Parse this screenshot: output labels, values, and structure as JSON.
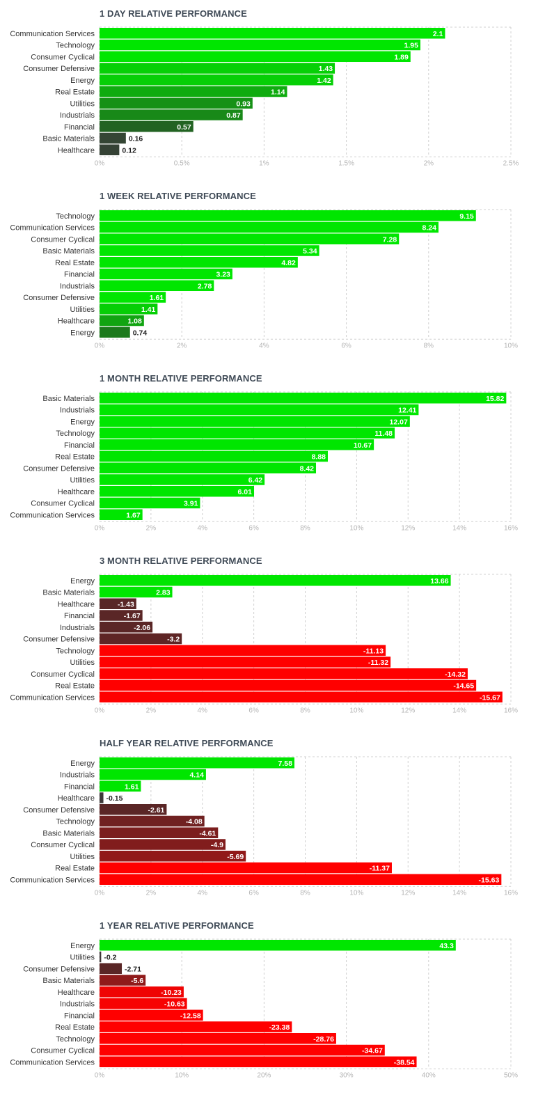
{
  "colors": {
    "max_green": "#00e600",
    "dark_green": "#245a24",
    "neutral": "#3b3b3b",
    "dark_red": "#5a2626",
    "max_red": "#ff0000",
    "grid": "#d0d0d0"
  },
  "chart_data": [
    {
      "type": "bar",
      "orientation": "horizontal",
      "title": "1 DAY RELATIVE PERFORMANCE",
      "categories": [
        "Communication Services",
        "Technology",
        "Consumer Cyclical",
        "Consumer Defensive",
        "Energy",
        "Real Estate",
        "Utilities",
        "Industrials",
        "Financial",
        "Basic Materials",
        "Healthcare"
      ],
      "values": [
        2.1,
        1.95,
        1.89,
        1.43,
        1.42,
        1.14,
        0.93,
        0.87,
        0.57,
        0.16,
        0.12
      ],
      "value_labels": [
        "2.1",
        "1.95",
        "1.89",
        "1.43",
        "1.42",
        "1.14",
        "0.93",
        "0.87",
        "0.57",
        "0.16",
        "0.12"
      ],
      "ticks": [
        "0%",
        "0.5%",
        "1%",
        "1.5%",
        "2%",
        "2.5%"
      ],
      "xlim": [
        0,
        2.5
      ]
    },
    {
      "type": "bar",
      "orientation": "horizontal",
      "title": "1 WEEK RELATIVE PERFORMANCE",
      "categories": [
        "Technology",
        "Communication Services",
        "Consumer Cyclical",
        "Basic Materials",
        "Real Estate",
        "Financial",
        "Industrials",
        "Consumer Defensive",
        "Utilities",
        "Healthcare",
        "Energy"
      ],
      "values": [
        9.15,
        8.24,
        7.28,
        5.34,
        4.82,
        3.23,
        2.78,
        1.61,
        1.41,
        1.08,
        0.74
      ],
      "value_labels": [
        "9.15",
        "8.24",
        "7.28",
        "5.34",
        "4.82",
        "3.23",
        "2.78",
        "1.61",
        "1.41",
        "1.08",
        "0.74"
      ],
      "ticks": [
        "0%",
        "2%",
        "4%",
        "6%",
        "8%",
        "10%"
      ],
      "xlim": [
        0,
        10
      ]
    },
    {
      "type": "bar",
      "orientation": "horizontal",
      "title": "1 MONTH RELATIVE PERFORMANCE",
      "categories": [
        "Basic Materials",
        "Industrials",
        "Energy",
        "Technology",
        "Financial",
        "Real Estate",
        "Consumer Defensive",
        "Utilities",
        "Healthcare",
        "Consumer Cyclical",
        "Communication Services"
      ],
      "values": [
        15.82,
        12.41,
        12.07,
        11.48,
        10.67,
        8.88,
        8.42,
        6.42,
        6.01,
        3.91,
        1.67
      ],
      "value_labels": [
        "15.82",
        "12.41",
        "12.07",
        "11.48",
        "10.67",
        "8.88",
        "8.42",
        "6.42",
        "6.01",
        "3.91",
        "1.67"
      ],
      "ticks": [
        "0%",
        "2%",
        "4%",
        "6%",
        "8%",
        "10%",
        "12%",
        "14%",
        "16%"
      ],
      "xlim": [
        0,
        16
      ]
    },
    {
      "type": "bar",
      "orientation": "horizontal",
      "title": "3 MONTH RELATIVE PERFORMANCE",
      "categories": [
        "Energy",
        "Basic Materials",
        "Healthcare",
        "Financial",
        "Industrials",
        "Consumer Defensive",
        "Technology",
        "Utilities",
        "Consumer Cyclical",
        "Real Estate",
        "Communication Services"
      ],
      "values": [
        13.66,
        2.83,
        -1.43,
        -1.67,
        -2.06,
        -3.2,
        -11.13,
        -11.32,
        -14.32,
        -14.65,
        -15.67
      ],
      "value_labels": [
        "13.66",
        "2.83",
        "-1.43",
        "-1.67",
        "-2.06",
        "-3.2",
        "-11.13",
        "-11.32",
        "-14.32",
        "-14.65",
        "-15.67"
      ],
      "ticks": [
        "0%",
        "2%",
        "4%",
        "6%",
        "8%",
        "10%",
        "12%",
        "14%",
        "16%"
      ],
      "xlim": [
        0,
        16
      ],
      "bar_length": "absolute value"
    },
    {
      "type": "bar",
      "orientation": "horizontal",
      "title": "HALF YEAR RELATIVE PERFORMANCE",
      "categories": [
        "Energy",
        "Industrials",
        "Financial",
        "Healthcare",
        "Consumer Defensive",
        "Technology",
        "Basic Materials",
        "Consumer Cyclical",
        "Utilities",
        "Real Estate",
        "Communication Services"
      ],
      "values": [
        7.58,
        4.14,
        1.61,
        -0.15,
        -2.61,
        -4.08,
        -4.61,
        -4.9,
        -5.69,
        -11.37,
        -15.63
      ],
      "value_labels": [
        "7.58",
        "4.14",
        "1.61",
        "-0.15",
        "-2.61",
        "-4.08",
        "-4.61",
        "-4.9",
        "-5.69",
        "-11.37",
        "-15.63"
      ],
      "ticks": [
        "0%",
        "2%",
        "4%",
        "6%",
        "8%",
        "10%",
        "12%",
        "14%",
        "16%"
      ],
      "xlim": [
        0,
        16
      ],
      "bar_length": "absolute value"
    },
    {
      "type": "bar",
      "orientation": "horizontal",
      "title": "1 YEAR RELATIVE PERFORMANCE",
      "categories": [
        "Energy",
        "Utilities",
        "Consumer Defensive",
        "Basic Materials",
        "Healthcare",
        "Industrials",
        "Financial",
        "Real Estate",
        "Technology",
        "Consumer Cyclical",
        "Communication Services"
      ],
      "values": [
        43.3,
        -0.2,
        -2.71,
        -5.6,
        -10.23,
        -10.63,
        -12.58,
        -23.38,
        -28.76,
        -34.67,
        -38.54
      ],
      "value_labels": [
        "43.3",
        "-0.2",
        "-2.71",
        "-5.6",
        "-10.23",
        "-10.63",
        "-12.58",
        "-23.38",
        "-28.76",
        "-34.67",
        "-38.54"
      ],
      "ticks": [
        "0%",
        "10%",
        "20%",
        "30%",
        "40%",
        "50%"
      ],
      "xlim": [
        0,
        50
      ],
      "bar_length": "absolute value"
    }
  ]
}
